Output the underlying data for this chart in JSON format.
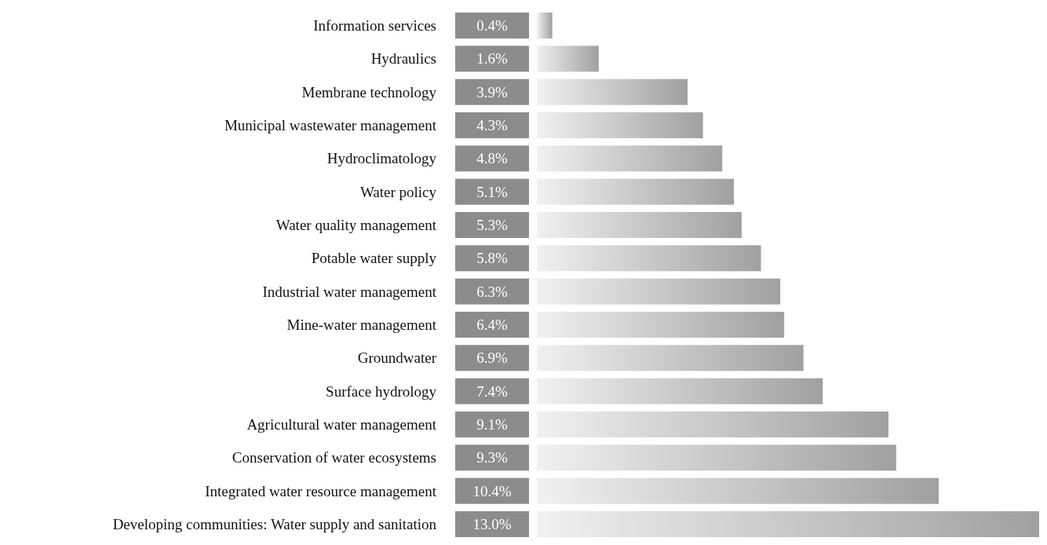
{
  "chart_data": {
    "type": "bar",
    "orientation": "horizontal",
    "categories": [
      "Information services",
      "Hydraulics",
      "Membrane technology",
      "Municipal wastewater management",
      "Hydroclimatology",
      "Water policy",
      "Water quality management",
      "Potable water supply",
      "Industrial water management",
      "Mine-water management",
      "Groundwater",
      "Surface hydrology",
      "Agricultural water management",
      "Conservation of water ecosystems",
      "Integrated water resource management",
      "Developing communities: Water supply and sanitation"
    ],
    "values": [
      0.4,
      1.6,
      3.9,
      4.3,
      4.8,
      5.1,
      5.3,
      5.8,
      6.3,
      6.4,
      6.9,
      7.4,
      9.1,
      9.3,
      10.4,
      13.0
    ],
    "value_labels": [
      "0.4%",
      "1.6%",
      "3.9%",
      "4.3%",
      "4.8%",
      "5.1%",
      "5.3%",
      "5.8%",
      "6.3%",
      "6.4%",
      "6.9%",
      "7.4%",
      "9.1%",
      "9.3%",
      "10.4%",
      "13.0%"
    ],
    "color": "#a0a0a0"
  }
}
